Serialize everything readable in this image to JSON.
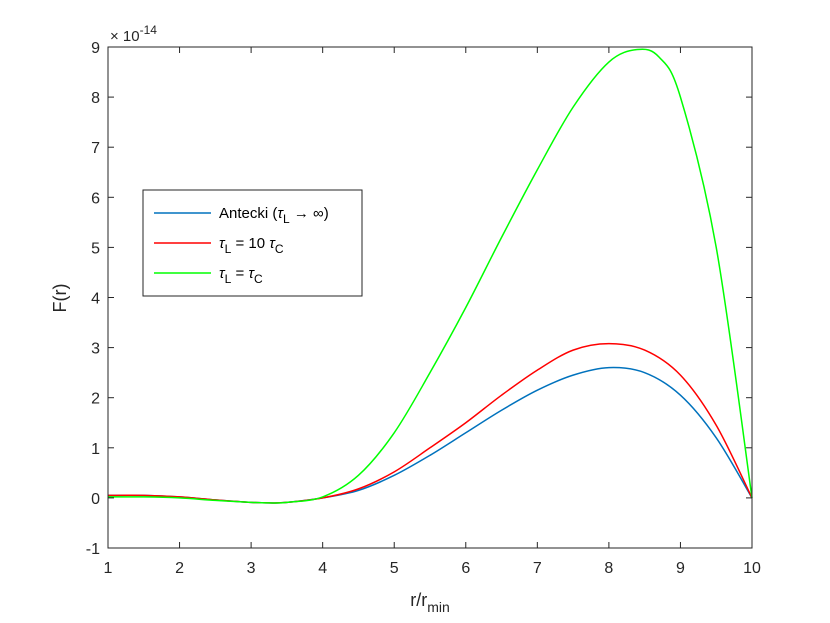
{
  "chart_data": {
    "type": "line",
    "xlabel": "r/r",
    "xlabel_sub": "min",
    "ylabel": "F(r)",
    "exponent_label": {
      "prefix": "× 10",
      "exp": "-14"
    },
    "xlim": [
      1,
      10
    ],
    "ylim": [
      -1,
      9
    ],
    "xticks": [
      "1",
      "2",
      "3",
      "4",
      "5",
      "6",
      "7",
      "8",
      "9",
      "10"
    ],
    "yticks": [
      "-1",
      "0",
      "1",
      "2",
      "3",
      "4",
      "5",
      "6",
      "7",
      "8",
      "9"
    ],
    "grid": false,
    "legend_position": "middle-left",
    "series": [
      {
        "name": "Antecki (τL → ∞)",
        "legend_parts": {
          "pre": "Antecki (",
          "tau": "τ",
          "sub": "L",
          "post": " → ∞)"
        },
        "color": "#0072BD",
        "x": [
          1,
          1.5,
          2,
          2.5,
          3,
          3.25,
          3.5,
          4,
          4.5,
          5,
          5.5,
          6,
          6.5,
          7,
          7.5,
          8,
          8.5,
          9,
          9.5,
          10
        ],
        "y": [
          0.05,
          0.05,
          0.02,
          -0.04,
          -0.09,
          -0.1,
          -0.09,
          0,
          0.15,
          0.45,
          0.85,
          1.3,
          1.75,
          2.15,
          2.45,
          2.6,
          2.5,
          2.05,
          1.2,
          0
        ]
      },
      {
        "name": "τL = 10 τC",
        "legend_parts": {
          "pre": "",
          "tau": "τ",
          "sub": "L",
          "post": " = 10 ",
          "tau2": "τ",
          "sub2": "C"
        },
        "color": "#FF0000",
        "x": [
          1,
          1.5,
          2,
          2.5,
          3,
          3.25,
          3.5,
          4,
          4.5,
          5,
          5.5,
          6,
          6.5,
          7,
          7.5,
          8,
          8.5,
          9,
          9.5,
          10
        ],
        "y": [
          0.05,
          0.05,
          0.02,
          -0.04,
          -0.09,
          -0.1,
          -0.09,
          0,
          0.18,
          0.52,
          1.0,
          1.5,
          2.05,
          2.55,
          2.95,
          3.08,
          2.95,
          2.45,
          1.45,
          0
        ]
      },
      {
        "name": "τL = τC",
        "legend_parts": {
          "pre": "",
          "tau": "τ",
          "sub": "L",
          "post": " = ",
          "tau2": "τ",
          "sub2": "C"
        },
        "color": "#00FF00",
        "x": [
          1,
          1.5,
          2,
          2.5,
          3,
          3.25,
          3.5,
          4,
          4.5,
          5,
          5.5,
          6,
          6.5,
          7,
          7.5,
          8,
          8.4,
          8.7,
          9,
          9.5,
          10
        ],
        "y": [
          0.02,
          0.02,
          0.0,
          -0.05,
          -0.09,
          -0.1,
          -0.09,
          0.02,
          0.45,
          1.3,
          2.5,
          3.8,
          5.2,
          6.55,
          7.8,
          8.7,
          8.95,
          8.8,
          8.0,
          5.0,
          0
        ]
      }
    ]
  }
}
